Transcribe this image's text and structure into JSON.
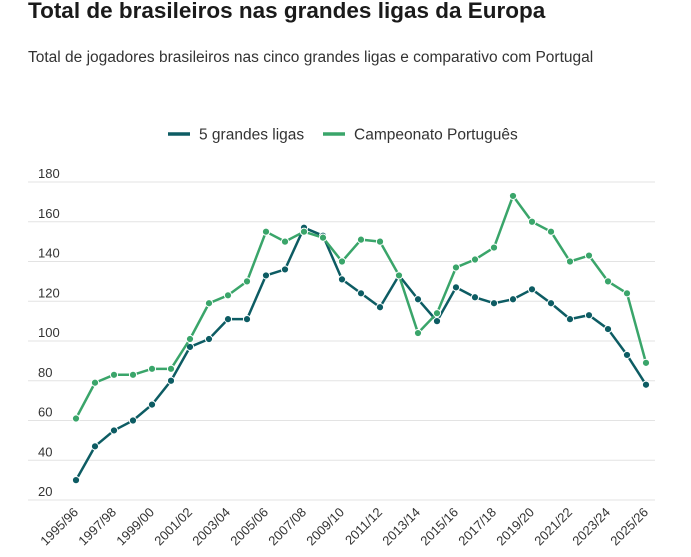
{
  "title": "Total de brasileiros nas grandes ligas da Europa",
  "subtitle": "Total de jogadores brasileiros nas cinco grandes ligas e comparativo com Portugal",
  "chart_data": {
    "type": "line",
    "title": "Total de brasileiros nas grandes ligas da Europa",
    "subtitle": "Total de jogadores brasileiros nas cinco grandes ligas e comparativo com Portugal",
    "xlabel": "",
    "ylabel": "",
    "ylim": [
      20,
      180
    ],
    "yticks": [
      20,
      40,
      60,
      80,
      100,
      120,
      140,
      160,
      180
    ],
    "grid": true,
    "legend_position": "top",
    "x": [
      "1995/96",
      "1996/97",
      "1997/98",
      "1998/99",
      "1999/00",
      "2000/01",
      "2001/02",
      "2002/03",
      "2003/04",
      "2004/05",
      "2005/06",
      "2006/07",
      "2007/08",
      "2008/09",
      "2009/10",
      "2010/11",
      "2011/12",
      "2012/13",
      "2013/14",
      "2014/15",
      "2015/16",
      "2016/17",
      "2017/18",
      "2018/19",
      "2019/20",
      "2020/21",
      "2021/22",
      "2022/23",
      "2023/24",
      "2024/25",
      "2025/26"
    ],
    "xticklabels": [
      "1995/96",
      "1997/98",
      "1999/00",
      "2001/02",
      "2003/04",
      "2005/06",
      "2007/08",
      "2009/10",
      "2011/12",
      "2013/14",
      "2015/16",
      "2017/18",
      "2019/20",
      "2021/22",
      "2023/24",
      "2025/26"
    ],
    "series": [
      {
        "name": "5 grandes ligas",
        "color": "#0d5c63",
        "values": [
          30,
          47,
          55,
          60,
          68,
          80,
          97,
          101,
          111,
          111,
          133,
          136,
          157,
          153,
          131,
          124,
          117,
          133,
          121,
          110,
          127,
          122,
          119,
          121,
          126,
          119,
          111,
          113,
          106,
          93,
          78
        ]
      },
      {
        "name": "Campeonato Português",
        "color": "#3aa56a",
        "values": [
          61,
          79,
          83,
          83,
          86,
          86,
          101,
          119,
          123,
          130,
          155,
          150,
          155,
          152,
          140,
          151,
          150,
          133,
          104,
          114,
          137,
          141,
          147,
          173,
          160,
          155,
          140,
          143,
          130,
          124,
          89
        ]
      }
    ]
  }
}
